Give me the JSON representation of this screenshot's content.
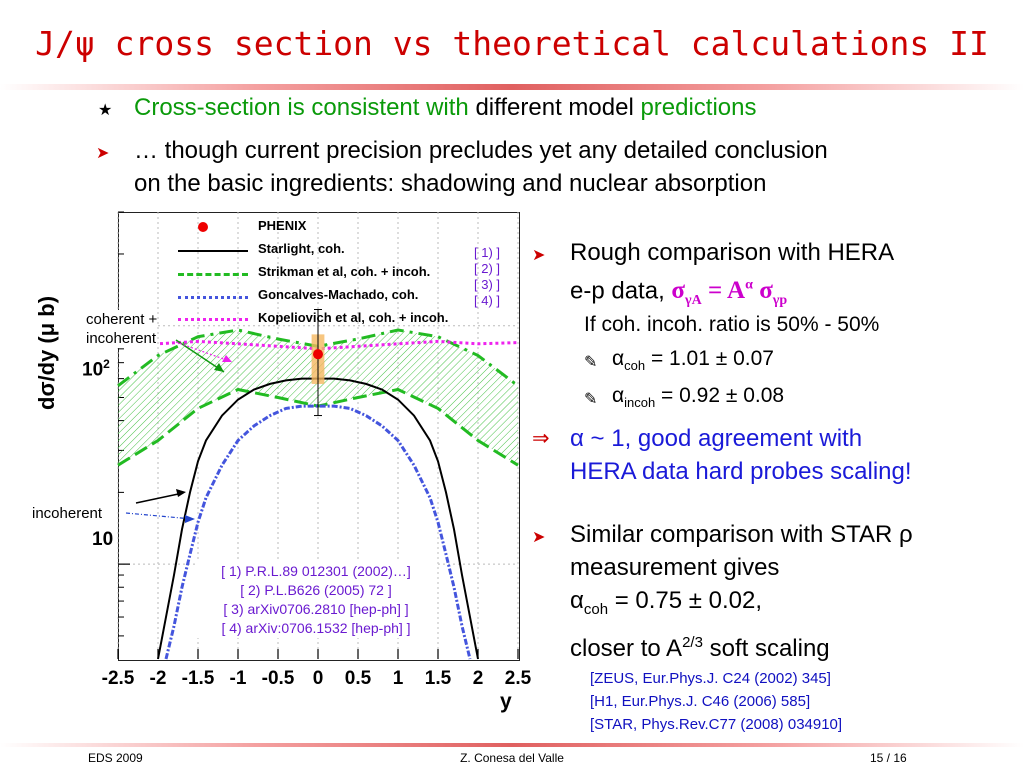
{
  "slide": {
    "title": "J/ψ cross section vs theoretical calculations II",
    "bullet1": {
      "part1": "Cross-section is consistent with",
      "part2": " different model ",
      "part3": "predictions"
    },
    "bullet2": {
      "line1": "… though current precision precludes yet any detailed conclusion",
      "line2": "on the basic ingredients: shadowing and nuclear absorption"
    },
    "right": {
      "b3_line1": "Rough comparison with HERA",
      "b3_line2": "e-p data,",
      "b3_formula": "σγA = Aα σγp",
      "ratio_line": "If coh. incoh. ratio is 50% - 50%",
      "alpha_coh": "αcoh = 1.01 ± 0.07",
      "alpha_incoh": "αincoh = 0.92 ± 0.08",
      "conclusion_line1": "α ~ 1, good agreement with",
      "conclusion_line2": "HERA data hard probes scaling!",
      "b4_line1": "Similar comparison with STAR ρ",
      "b4_line2": "measurement gives",
      "b4_line3": "αcoh = 0.75 ± 0.02,",
      "b4_line4": "closer to A2/3 soft scaling",
      "refs": [
        "[ZEUS, Eur.Phys.J. C24 (2002) 345]",
        "[H1, Eur.Phys.J. C46 (2006) 585]",
        "[STAR, Phys.Rev.C77 (2008) 034910]"
      ]
    },
    "footer": {
      "left": "EDS 2009",
      "center": "Z. Conesa del Valle",
      "right": "15 / 16"
    }
  },
  "plot_labels": {
    "ylabel": "dσ/dy (μ b)",
    "xlabel": "y",
    "ytick_100": "10",
    "ytick_100_exp": "2",
    "ytick_10": "10",
    "annot_coh_incoh_1": "coherent +",
    "annot_coh_incoh_2": "incoherent",
    "annot_incoh": "incoherent",
    "legend": [
      "PHENIX",
      "Starlight, coh.",
      "Strikman et al, coh. + incoh.",
      "Goncalves-Machado, coh.",
      "Kopeliovich et al, coh. + incoh."
    ],
    "ref_tags": [
      "[ 1) ]",
      "[ 2) ]",
      "[ 3) ]",
      "[ 4) ]"
    ],
    "ref_box": [
      "[ 1) P.R.L.89 012301 (2002)…]",
      "[ 2) P.L.B626 (2005) 72 ]",
      "[ 3) arXiv0706.2810 [hep-ph]  ]",
      "[ 4) arXiv:0706.1532 [hep-ph] ]"
    ]
  },
  "colors": {
    "title": "#cc0000",
    "green_text": "#0a9a0a",
    "blue_text": "#1a1ad8",
    "magenta": "#ee22ee",
    "strikman": "#22bb22",
    "goncalves": "#4455dd",
    "starlight": "#000000",
    "phenix": "#ee0000"
  },
  "chart_data": {
    "type": "line",
    "xlabel": "y",
    "ylabel": "dσ/dy (μ b)",
    "xlim": [
      -2.5,
      2.5
    ],
    "ylog": true,
    "ylim": [
      4,
      300
    ],
    "xticks": [
      -2.5,
      -2,
      -1.5,
      -1,
      -0.5,
      0,
      0.5,
      1,
      1.5,
      2,
      2.5
    ],
    "xtick_labels": [
      "-2.5",
      "-2",
      "-1.5",
      "-1",
      "-0.5",
      "0",
      "0.5",
      "1",
      "1.5",
      "2",
      "2.5"
    ],
    "legend_position": "top-right",
    "series": [
      {
        "name": "PHENIX",
        "kind": "point",
        "x": [
          0
        ],
        "y": [
          76
        ],
        "yerr_low": [
          42
        ],
        "yerr_high": [
          117
        ],
        "sys_x": 0.08,
        "sys_y_low": [
          57
        ],
        "sys_y_high": [
          92
        ]
      },
      {
        "name": "Starlight, coh.",
        "kind": "line",
        "x": [
          -2.0,
          -1.9,
          -1.8,
          -1.7,
          -1.6,
          -1.5,
          -1.4,
          -1.2,
          -1.0,
          -0.8,
          -0.6,
          -0.4,
          -0.2,
          0,
          0.2,
          0.4,
          0.6,
          0.8,
          1.0,
          1.2,
          1.4,
          1.5,
          1.6,
          1.7,
          1.8,
          1.9,
          2.0
        ],
        "y": [
          4,
          6,
          9,
          14,
          20,
          27,
          33,
          42,
          49,
          54,
          57,
          59,
          60,
          60,
          60,
          59,
          57,
          54,
          49,
          42,
          33,
          27,
          20,
          14,
          9,
          6,
          4
        ]
      },
      {
        "name": "Goncalves-Machado, coh.",
        "kind": "line",
        "x": [
          -1.9,
          -1.8,
          -1.7,
          -1.6,
          -1.5,
          -1.4,
          -1.2,
          -1.0,
          -0.8,
          -0.6,
          -0.4,
          -0.2,
          0,
          0.2,
          0.4,
          0.6,
          0.8,
          1.0,
          1.2,
          1.4,
          1.5,
          1.6,
          1.7,
          1.8,
          1.9
        ],
        "y": [
          4,
          5.5,
          8,
          11,
          15,
          19,
          26,
          33,
          38,
          42,
          45,
          46,
          46,
          46,
          45,
          42,
          38,
          33,
          26,
          19,
          15,
          11,
          8,
          5.5,
          4
        ]
      },
      {
        "name": "Strikman et al, coh. + incoh.",
        "kind": "band",
        "x": [
          -2.5,
          -2.0,
          -1.5,
          -1.0,
          -0.5,
          0,
          0.5,
          1.0,
          1.5,
          2.0,
          2.5
        ],
        "y_low": [
          26,
          33,
          45,
          54,
          50,
          46,
          50,
          54,
          45,
          33,
          26
        ],
        "y_high": [
          56,
          75,
          90,
          96,
          88,
          82,
          88,
          96,
          90,
          75,
          56
        ]
      },
      {
        "name": "Kopeliovich et al, coh. + incoh.",
        "kind": "line",
        "x": [
          -2.5,
          -2.0,
          -1.5,
          -1.0,
          -0.5,
          0,
          0.5,
          1.0,
          1.5,
          2.0,
          2.5
        ],
        "y": [
          85,
          84,
          86,
          84,
          82,
          80,
          82,
          84,
          86,
          84,
          85
        ]
      }
    ]
  }
}
